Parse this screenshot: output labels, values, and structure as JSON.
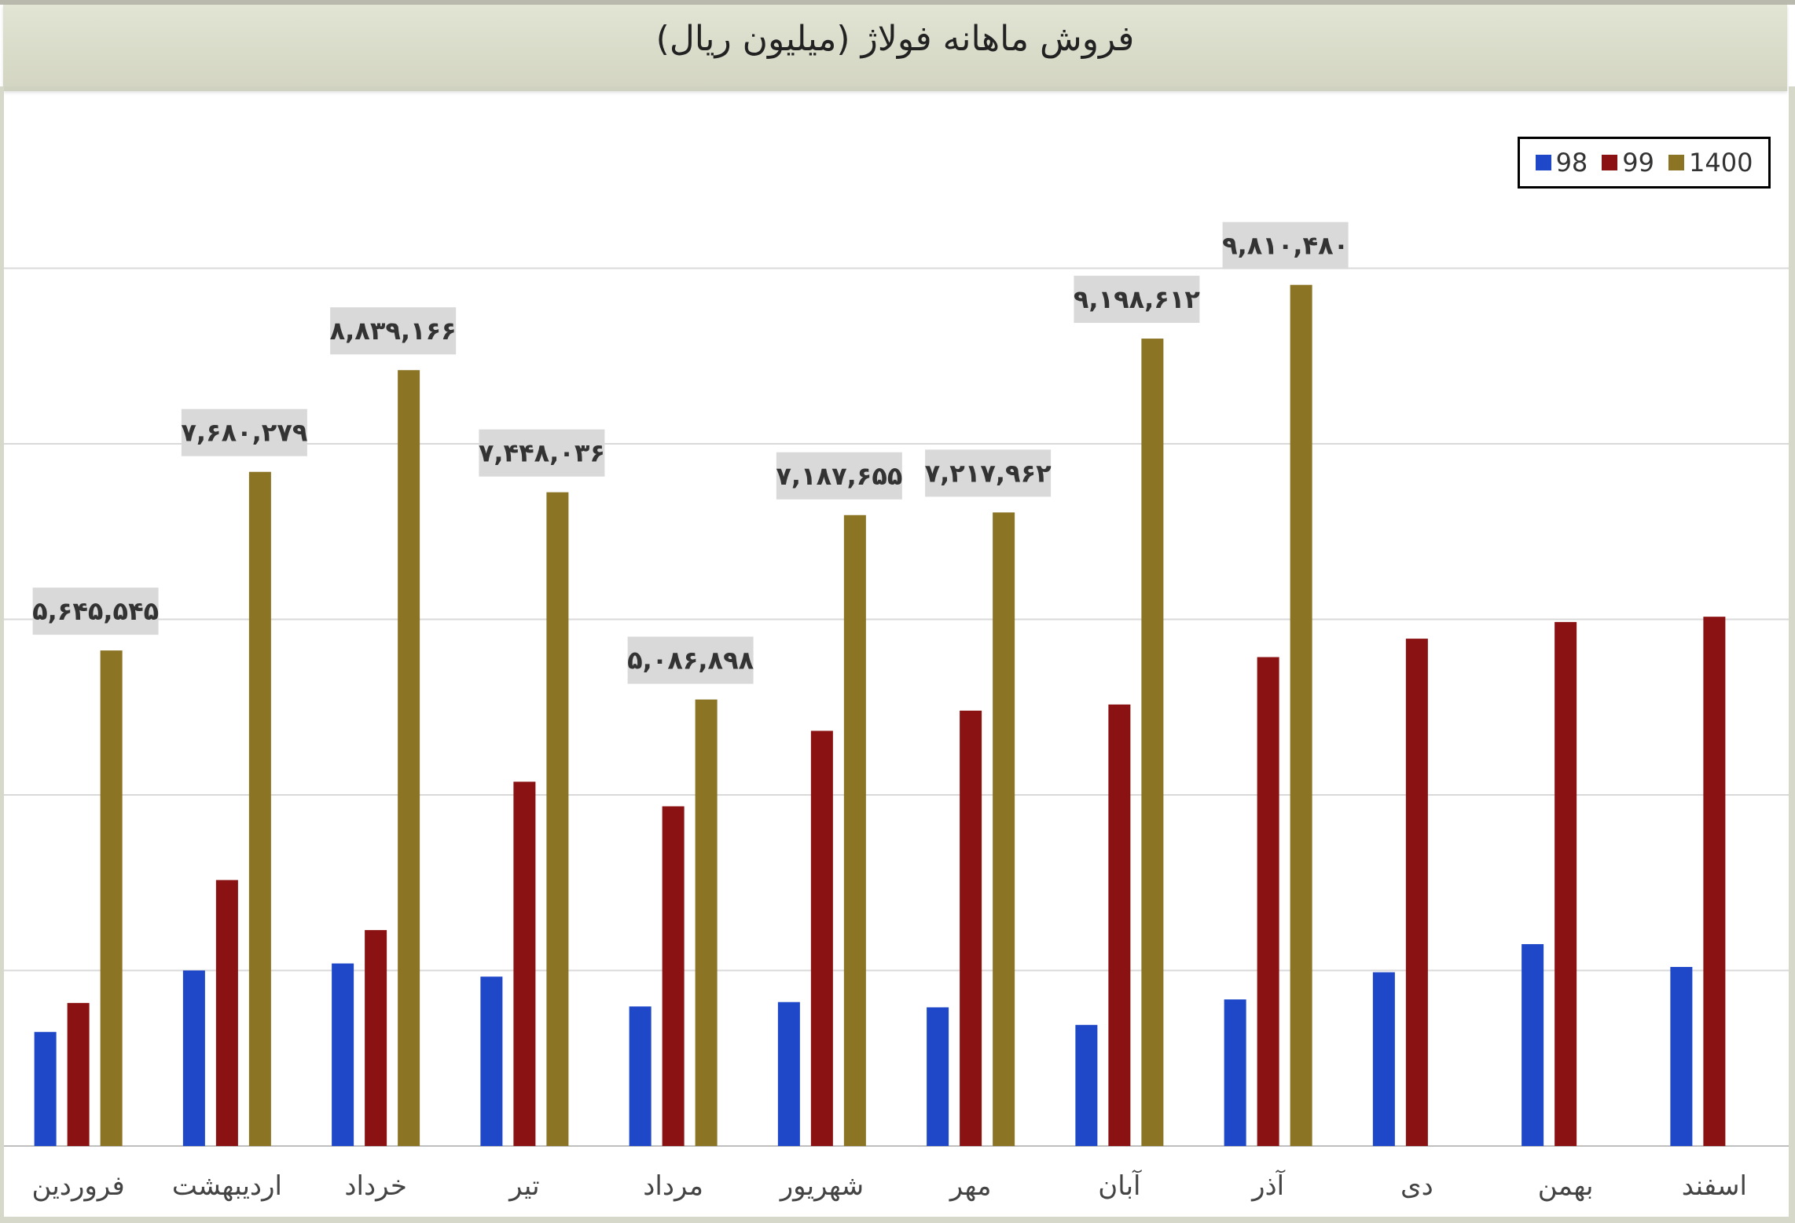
{
  "chart_data": {
    "type": "bar",
    "title": "فروش ماهانه فولاژ (میلیون ریال)",
    "xlabel": "",
    "ylabel": "",
    "categories": [
      "فروردین",
      "اردیبهشت",
      "خرداد",
      "تیر",
      "مرداد",
      "شهریور",
      "مهر",
      "آبان",
      "آذر",
      "دی",
      "بهمن",
      "اسفند"
    ],
    "series": [
      {
        "name": "98",
        "color": "#1f48c8",
        "values": [
          1300000,
          2000000,
          2080000,
          1930000,
          1590000,
          1640000,
          1580000,
          1380000,
          1670000,
          1980000,
          2300000,
          2040000
        ]
      },
      {
        "name": "99",
        "color": "#8b1212",
        "values": [
          1630000,
          3030000,
          2460000,
          4150000,
          3870000,
          4730000,
          4960000,
          5030000,
          5570000,
          5780000,
          5970000,
          6030000
        ]
      },
      {
        "name": "1400",
        "color": "#8b7424",
        "values": [
          5645545,
          7680279,
          8839166,
          7448036,
          5086898,
          7187655,
          7217962,
          9198612,
          9810480,
          null,
          null,
          null
        ]
      }
    ],
    "data_labels": [
      "۵,۶۴۵,۵۴۵",
      "۷,۶۸۰,۲۷۹",
      "۸,۸۳۹,۱۶۶",
      "۷,۴۴۸,۰۳۶",
      "۵,۰۸۶,۸۹۸",
      "۷,۱۸۷,۶۵۵",
      "۷,۲۱۷,۹۶۲",
      "۹,۱۹۸,۶۱۲",
      "۹,۸۱۰,۴۸۰",
      "",
      "",
      ""
    ],
    "ylim": [
      0,
      12000000
    ],
    "grid": true,
    "legend_position": "top-right"
  }
}
